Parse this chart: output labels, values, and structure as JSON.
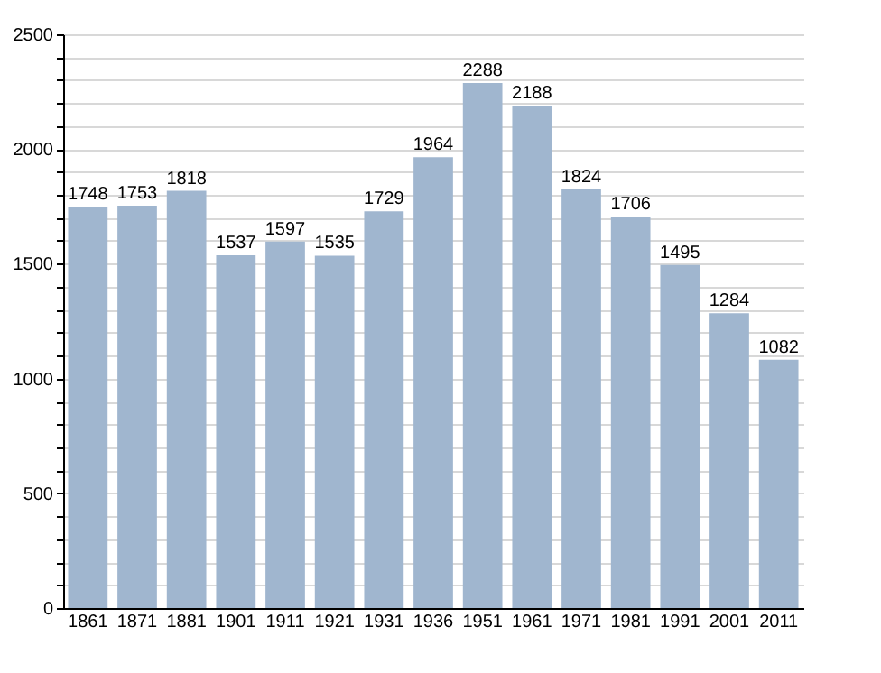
{
  "chart_data": {
    "type": "bar",
    "categories": [
      "1861",
      "1871",
      "1881",
      "1901",
      "1911",
      "1921",
      "1931",
      "1936",
      "1951",
      "1961",
      "1971",
      "1981",
      "1991",
      "2001",
      "2011"
    ],
    "values": [
      1748,
      1753,
      1818,
      1537,
      1597,
      1535,
      1729,
      1964,
      2288,
      2188,
      1824,
      1706,
      1495,
      1284,
      1082
    ],
    "color": "#a0b6cf",
    "data_labels": true,
    "grid": "y",
    "ylim": [
      0,
      2500
    ],
    "yticks": [
      0,
      {
        "value": 100,
        "label": null
      },
      {
        "value": 200,
        "label": null
      },
      {
        "value": 300,
        "label": null
      },
      {
        "value": 400,
        "label": null
      },
      500,
      {
        "value": 600,
        "label": null
      },
      {
        "value": 700,
        "label": null
      },
      {
        "value": 800,
        "label": null
      },
      {
        "value": 900,
        "label": null
      },
      1000,
      {
        "value": 1100,
        "label": null
      },
      {
        "value": 1200,
        "label": null
      },
      {
        "value": 1300,
        "label": null
      },
      {
        "value": 1400,
        "label": null
      },
      1500,
      {
        "value": 1600,
        "label": null
      },
      {
        "value": 1700,
        "label": null
      },
      {
        "value": 1800,
        "label": null
      },
      {
        "value": 1900,
        "label": null
      },
      2000,
      {
        "value": 2100,
        "label": null
      },
      {
        "value": 2200,
        "label": null
      },
      {
        "value": 2300,
        "label": null
      },
      {
        "value": 2400,
        "label": null
      },
      2500
    ]
  }
}
